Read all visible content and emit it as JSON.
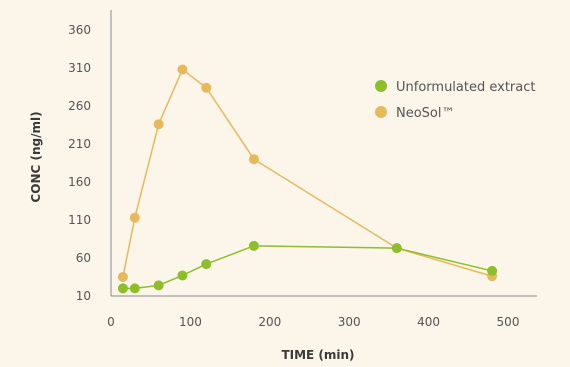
{
  "chart_data": {
    "type": "line",
    "xlabel": "TIME (min)",
    "ylabel": "CONC (ng/ml)",
    "xlim": [
      0,
      500
    ],
    "ylim": [
      10,
      360
    ],
    "xticks": [
      0,
      100,
      200,
      300,
      400,
      500
    ],
    "yticks": [
      10,
      60,
      110,
      160,
      210,
      260,
      310,
      360
    ],
    "grid": false,
    "legend_position": "right",
    "series": [
      {
        "name": "Unformulated extract",
        "color": "#8dbf2a",
        "x": [
          15,
          30,
          60,
          90,
          120,
          180,
          360,
          480
        ],
        "y": [
          20,
          20,
          24,
          37,
          52,
          76,
          73,
          43
        ]
      },
      {
        "name": "NeoSol™",
        "color": "#e8b95b",
        "x": [
          15,
          30,
          60,
          90,
          120,
          180,
          360,
          480
        ],
        "y": [
          35,
          113,
          236,
          308,
          284,
          190,
          73,
          36
        ]
      }
    ]
  }
}
